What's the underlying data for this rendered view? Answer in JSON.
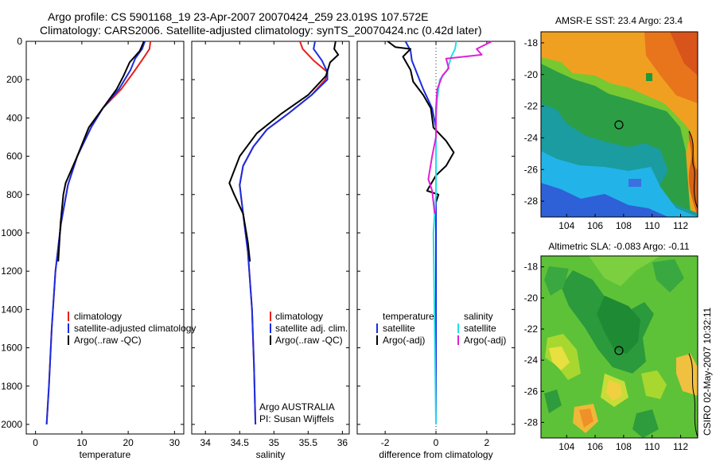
{
  "header": {
    "line1": "Argo profile: CS 5901168_19 23-Apr-2007 20070424_259 23.019S 107.572E",
    "line2": "Climatology: CARS2006. Satellite-adjusted climatology: synTS_20070424.nc (0.42d later)"
  },
  "credits": {
    "argo": "Argo AUSTRALIA",
    "pi": "PI: Susan Wijffels",
    "stamp": "CSIRO 02-May-2007 10:32:11"
  },
  "colors": {
    "climatology": "#e8201a",
    "satellite": "#1a2ee0",
    "argo": "#000000",
    "sal_satellite": "#22e0e8",
    "sal_argo": "#e020d8"
  },
  "chart_data": [
    {
      "type": "line",
      "id": "temperature",
      "xlabel": "temperature",
      "ylabel": "",
      "xlim": [
        -2,
        32
      ],
      "ylim": [
        2050,
        0
      ],
      "xticks": [
        0,
        10,
        20,
        30
      ],
      "yticks": [
        0,
        200,
        400,
        600,
        800,
        1000,
        1200,
        1400,
        1600,
        1800,
        2000
      ],
      "legend": [
        "climatology",
        "satellite-adjusted climatology",
        "Argo(..raw -QC)"
      ],
      "series": [
        {
          "name": "climatology",
          "color": "#e8201a",
          "x": [
            24.8,
            24.6,
            23.5,
            21.5,
            18.5,
            14.5,
            12.0,
            9.0,
            7.0,
            5.5,
            4.3,
            3.5,
            2.9,
            2.4
          ],
          "y": [
            0,
            40,
            80,
            150,
            250,
            350,
            450,
            600,
            750,
            950,
            1200,
            1500,
            1800,
            2000
          ]
        },
        {
          "name": "satellite-adjusted climatology",
          "color": "#1a2ee0",
          "x": [
            23.6,
            23.0,
            21.5,
            20.5,
            18.0,
            14.5,
            12.0,
            9.0,
            7.0,
            5.5,
            4.3,
            3.5,
            2.9,
            2.4
          ],
          "y": [
            0,
            40,
            90,
            150,
            250,
            350,
            450,
            600,
            750,
            950,
            1200,
            1500,
            1800,
            2000
          ]
        },
        {
          "name": "Argo(..raw -QC)",
          "color": "#000000",
          "x": [
            23.4,
            22.5,
            20.3,
            19.0,
            17.5,
            14.5,
            11.5,
            9.0,
            6.5,
            6.0,
            5.4,
            4.9
          ],
          "y": [
            0,
            50,
            110,
            180,
            250,
            350,
            450,
            600,
            740,
            800,
            950,
            1150
          ]
        }
      ]
    },
    {
      "type": "line",
      "id": "salinity",
      "xlabel": "salinity",
      "ylabel": "",
      "xlim": [
        33.8,
        36.1
      ],
      "ylim": [
        2050,
        0
      ],
      "xticks": [
        34,
        34.5,
        35,
        35.5,
        36
      ],
      "yticks": [
        0,
        200,
        400,
        600,
        800,
        1000,
        1200,
        1400,
        1600,
        1800,
        2000
      ],
      "legend": [
        "climatology",
        "satellite adj. clim.",
        "Argo(..raw -QC)"
      ],
      "series": [
        {
          "name": "climatology",
          "color": "#e8201a",
          "x": [
            35.38,
            35.42,
            35.58,
            35.78,
            35.75,
            35.55,
            35.2,
            34.9,
            34.7,
            34.55,
            34.5,
            34.55,
            34.62,
            34.68,
            34.71,
            34.73
          ],
          "y": [
            0,
            40,
            100,
            160,
            200,
            280,
            380,
            460,
            550,
            650,
            750,
            900,
            1100,
            1400,
            1700,
            2000
          ]
        },
        {
          "name": "satellite adj. clim.",
          "color": "#1a2ee0",
          "x": [
            35.6,
            35.58,
            35.7,
            35.78,
            35.78,
            35.55,
            35.2,
            34.9,
            34.7,
            34.55,
            34.5,
            34.55,
            34.62,
            34.68,
            34.71,
            34.73
          ],
          "y": [
            0,
            40,
            100,
            160,
            200,
            280,
            380,
            460,
            550,
            650,
            750,
            900,
            1100,
            1400,
            1700,
            2000
          ]
        },
        {
          "name": "Argo(..raw -QC)",
          "color": "#000000",
          "x": [
            35.9,
            35.88,
            35.94,
            35.82,
            35.76,
            35.5,
            35.1,
            34.75,
            34.5,
            34.35,
            34.42,
            34.55,
            34.62,
            34.65
          ],
          "y": [
            0,
            40,
            70,
            110,
            180,
            280,
            380,
            480,
            600,
            740,
            800,
            900,
            1050,
            1150
          ]
        }
      ]
    },
    {
      "type": "line",
      "id": "difference",
      "xlabel": "difference from climatology",
      "ylabel": "",
      "xlim": [
        -3.1,
        3.1
      ],
      "ylim": [
        2050,
        0
      ],
      "xticks": [
        -2,
        0,
        2
      ],
      "yticks": [
        0,
        200,
        400,
        600,
        800,
        1000,
        1200,
        1400,
        1600,
        1800,
        2000
      ],
      "legend": [
        "temperature",
        "satellite",
        "Argo(-adj)",
        "salinity",
        "satellite",
        "Argo(-adj)"
      ],
      "series": [
        {
          "name": "temperature satellite",
          "color": "#1a2ee0",
          "x": [
            -1.2,
            -1.0,
            -0.95,
            -0.8,
            -0.5,
            -0.15,
            0,
            0,
            0,
            0,
            0
          ],
          "y": [
            0,
            50,
            100,
            150,
            250,
            350,
            450,
            600,
            800,
            1200,
            2000
          ]
        },
        {
          "name": "temperature Argo(-adj)",
          "color": "#000000",
          "x": [
            -1.9,
            -1.6,
            -1.0,
            -1.3,
            -1.0,
            -0.9,
            -0.5,
            -0.2,
            -0.1,
            0.4,
            0.7,
            0.4,
            0.0,
            -0.35,
            0.1,
            0.0
          ],
          "y": [
            0,
            30,
            40,
            80,
            150,
            210,
            280,
            350,
            450,
            520,
            580,
            650,
            700,
            780,
            800,
            840
          ]
        },
        {
          "name": "salinity satellite",
          "color": "#22e0e8",
          "x": [
            0.8,
            0.75,
            0.6,
            0.45,
            0.15,
            0.05,
            0.0,
            0.0,
            0.0,
            -0.1,
            0.0
          ],
          "y": [
            0,
            40,
            80,
            150,
            200,
            300,
            400,
            600,
            800,
            1000,
            2000
          ]
        },
        {
          "name": "salinity Argo(-adj)",
          "color": "#e020d8",
          "x": [
            2.2,
            1.6,
            1.8,
            0.4,
            0.5,
            0.25,
            0.05,
            0.0,
            0.0,
            -0.15,
            -0.3,
            -0.15,
            -0.05
          ],
          "y": [
            0,
            40,
            70,
            90,
            140,
            180,
            250,
            350,
            500,
            600,
            720,
            780,
            900
          ]
        }
      ]
    },
    {
      "type": "heatmap",
      "id": "sst-map",
      "title": "AMSR-E SST: 23.4 Argo: 23.4",
      "xlim": [
        102.2,
        113.2
      ],
      "ylim": [
        -29,
        -17.3
      ],
      "xticks": [
        104,
        106,
        108,
        110,
        112
      ],
      "yticks": [
        -18,
        -20,
        -22,
        -24,
        -26,
        -28
      ],
      "marker": {
        "lon": 107.572,
        "lat": -23.019
      }
    },
    {
      "type": "heatmap",
      "id": "sla-map",
      "title": "Altimetric SLA: -0.083 Argo: -0.11",
      "xlim": [
        102.2,
        113.2
      ],
      "ylim": [
        -29,
        -17.3
      ],
      "xticks": [
        104,
        106,
        108,
        110,
        112
      ],
      "yticks": [
        -18,
        -20,
        -22,
        -24,
        -26,
        -28
      ],
      "marker": {
        "lon": 107.572,
        "lat": -23.019
      }
    }
  ]
}
